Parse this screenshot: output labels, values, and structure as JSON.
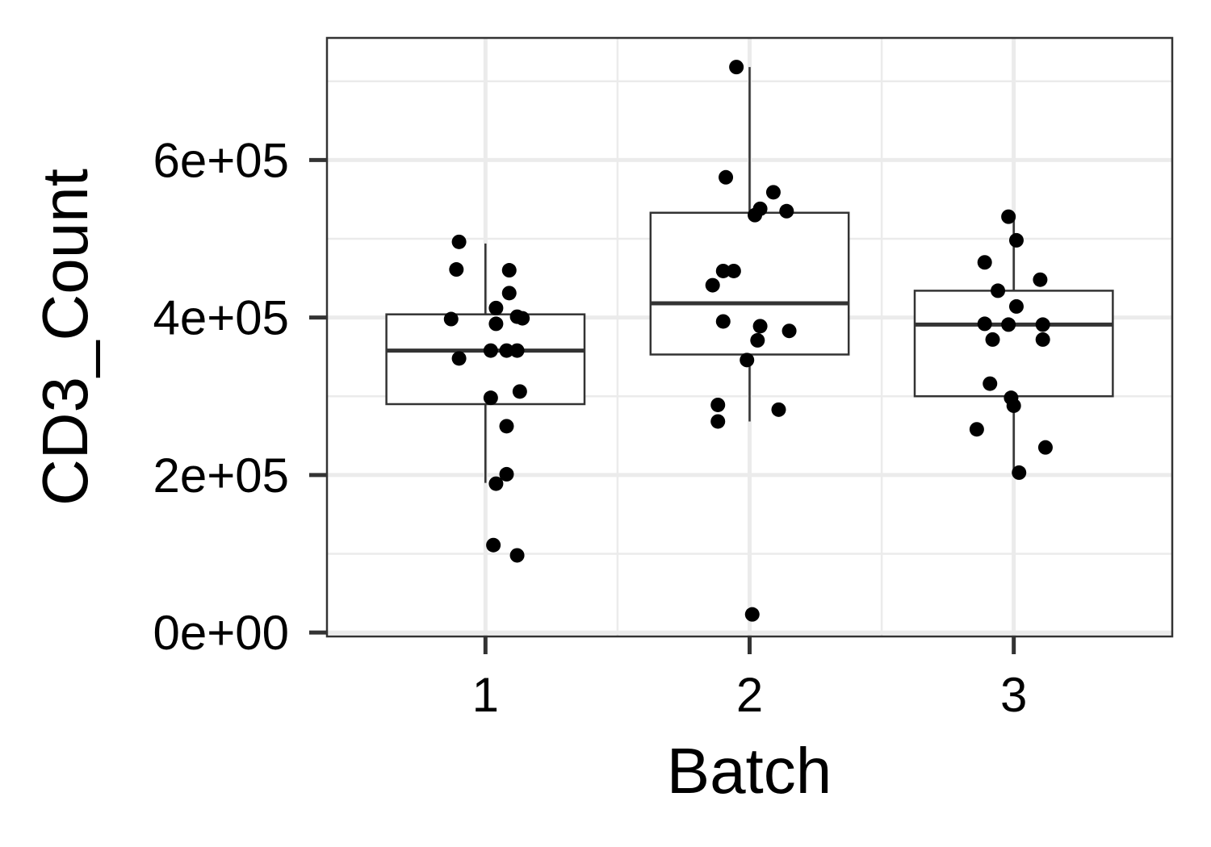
{
  "chart_data": {
    "type": "box",
    "title": "",
    "xlabel": "Batch",
    "ylabel": "CD3_Count",
    "categories": [
      "1",
      "2",
      "3"
    ],
    "ylim": [
      -5000,
      755000
    ],
    "yticks": [
      0,
      200000,
      400000,
      600000
    ],
    "ytick_labels": [
      "0e+00",
      "2e+05",
      "4e+05",
      "6e+05"
    ],
    "grid": true,
    "legend": "none",
    "boxes": [
      {
        "category": "1",
        "q1": 290000,
        "median": 358000,
        "q3": 404000,
        "whisker_low": 190000,
        "whisker_high": 494000
      },
      {
        "category": "2",
        "q1": 353000,
        "median": 418000,
        "q3": 533000,
        "whisker_low": 268000,
        "whisker_high": 718000
      },
      {
        "category": "3",
        "q1": 300000,
        "median": 391000,
        "q3": 434000,
        "whisker_low": 205000,
        "whisker_high": 528000
      }
    ],
    "points": [
      {
        "x": 0.9,
        "y": 496000
      },
      {
        "x": 0.89,
        "y": 461000
      },
      {
        "x": 1.09,
        "y": 460000
      },
      {
        "x": 1.09,
        "y": 431000
      },
      {
        "x": 1.04,
        "y": 412000
      },
      {
        "x": 1.12,
        "y": 401000
      },
      {
        "x": 1.14,
        "y": 399000
      },
      {
        "x": 0.87,
        "y": 398000
      },
      {
        "x": 1.04,
        "y": 392000
      },
      {
        "x": 1.02,
        "y": 358000
      },
      {
        "x": 1.08,
        "y": 358000
      },
      {
        "x": 1.12,
        "y": 358000
      },
      {
        "x": 0.9,
        "y": 348000
      },
      {
        "x": 1.13,
        "y": 306000
      },
      {
        "x": 1.02,
        "y": 298000
      },
      {
        "x": 1.08,
        "y": 262000
      },
      {
        "x": 1.08,
        "y": 201000
      },
      {
        "x": 1.04,
        "y": 189000
      },
      {
        "x": 1.03,
        "y": 111000
      },
      {
        "x": 1.12,
        "y": 98000
      },
      {
        "x": 1.95,
        "y": 718000
      },
      {
        "x": 1.91,
        "y": 578000
      },
      {
        "x": 2.09,
        "y": 559000
      },
      {
        "x": 2.04,
        "y": 538000
      },
      {
        "x": 2.14,
        "y": 535000
      },
      {
        "x": 2.02,
        "y": 530000
      },
      {
        "x": 1.9,
        "y": 459000
      },
      {
        "x": 1.94,
        "y": 459000
      },
      {
        "x": 1.86,
        "y": 441000
      },
      {
        "x": 1.9,
        "y": 395000
      },
      {
        "x": 2.04,
        "y": 389000
      },
      {
        "x": 2.15,
        "y": 383000
      },
      {
        "x": 2.03,
        "y": 371000
      },
      {
        "x": 1.99,
        "y": 346000
      },
      {
        "x": 1.88,
        "y": 289000
      },
      {
        "x": 2.11,
        "y": 283000
      },
      {
        "x": 1.88,
        "y": 268000
      },
      {
        "x": 2.01,
        "y": 23000
      },
      {
        "x": 2.98,
        "y": 528000
      },
      {
        "x": 3.01,
        "y": 498000
      },
      {
        "x": 2.89,
        "y": 470000
      },
      {
        "x": 3.1,
        "y": 448000
      },
      {
        "x": 2.94,
        "y": 434000
      },
      {
        "x": 3.01,
        "y": 414000
      },
      {
        "x": 2.89,
        "y": 392000
      },
      {
        "x": 2.98,
        "y": 391000
      },
      {
        "x": 3.11,
        "y": 391000
      },
      {
        "x": 2.92,
        "y": 372000
      },
      {
        "x": 3.11,
        "y": 372000
      },
      {
        "x": 2.91,
        "y": 316000
      },
      {
        "x": 2.99,
        "y": 298000
      },
      {
        "x": 3.0,
        "y": 288000
      },
      {
        "x": 2.86,
        "y": 258000
      },
      {
        "x": 3.12,
        "y": 235000
      },
      {
        "x": 3.02,
        "y": 203000
      }
    ]
  }
}
